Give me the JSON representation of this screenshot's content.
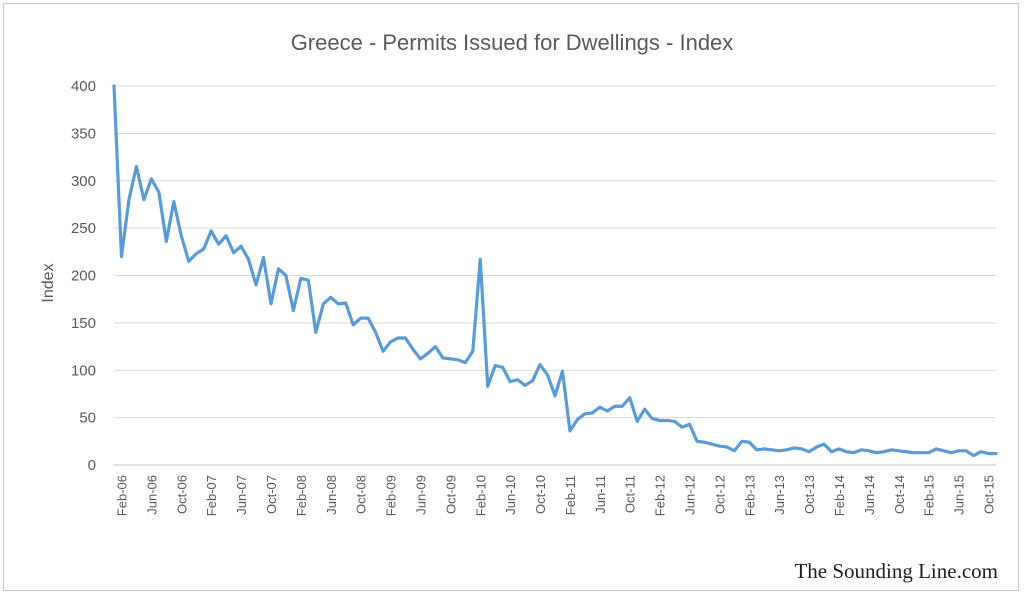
{
  "chart_data": {
    "type": "line",
    "title": "Greece - Permits Issued for Dwellings - Index",
    "xlabel": "",
    "ylabel": "Index",
    "ylim": [
      0,
      400
    ],
    "yticks": [
      0,
      50,
      100,
      150,
      200,
      250,
      300,
      350,
      400
    ],
    "grid": true,
    "x_tick_labels": [
      "Feb-06",
      "Jun-06",
      "Oct-06",
      "Feb-07",
      "Jun-07",
      "Oct-07",
      "Feb-08",
      "Jun-08",
      "Oct-08",
      "Feb-09",
      "Jun-09",
      "Oct-09",
      "Feb-10",
      "Jun-10",
      "Oct-10",
      "Feb-11",
      "Jun-11",
      "Oct-11",
      "Feb-12",
      "Jun-12",
      "Oct-12",
      "Feb-13",
      "Jun-13",
      "Oct-13",
      "Feb-14",
      "Jun-14",
      "Oct-14",
      "Feb-15",
      "Jun-15",
      "Oct-15"
    ],
    "line_color": "#5b9bd5",
    "series": [
      {
        "x": [
          "Jan-06",
          "Feb-06",
          "Mar-06",
          "Apr-06",
          "May-06",
          "Jun-06",
          "Jul-06",
          "Aug-06",
          "Sep-06",
          "Oct-06",
          "Nov-06",
          "Dec-06",
          "Jan-07",
          "Feb-07",
          "Mar-07",
          "Apr-07",
          "May-07",
          "Jun-07",
          "Jul-07",
          "Aug-07",
          "Sep-07",
          "Oct-07",
          "Nov-07",
          "Dec-07",
          "Jan-08",
          "Feb-08",
          "Mar-08",
          "Apr-08",
          "May-08",
          "Jun-08",
          "Jul-08",
          "Aug-08",
          "Sep-08",
          "Oct-08",
          "Nov-08",
          "Dec-08",
          "Jan-09",
          "Feb-09",
          "Mar-09",
          "Apr-09",
          "May-09",
          "Jun-09",
          "Jul-09",
          "Aug-09",
          "Sep-09",
          "Oct-09",
          "Nov-09",
          "Dec-09",
          "Jan-10",
          "Feb-10",
          "Mar-10",
          "Apr-10",
          "May-10",
          "Jun-10",
          "Jul-10",
          "Aug-10",
          "Sep-10",
          "Oct-10",
          "Nov-10",
          "Dec-10",
          "Jan-11",
          "Feb-11",
          "Mar-11",
          "Apr-11",
          "May-11",
          "Jun-11",
          "Jul-11",
          "Aug-11",
          "Sep-11",
          "Oct-11",
          "Nov-11",
          "Dec-11",
          "Jan-12",
          "Feb-12",
          "Mar-12",
          "Apr-12",
          "May-12",
          "Jun-12",
          "Jul-12",
          "Aug-12",
          "Sep-12",
          "Oct-12",
          "Nov-12",
          "Dec-12",
          "Jan-13",
          "Feb-13",
          "Mar-13",
          "Apr-13",
          "May-13",
          "Jun-13",
          "Jul-13",
          "Aug-13",
          "Sep-13",
          "Oct-13",
          "Nov-13",
          "Dec-13",
          "Jan-14",
          "Feb-14",
          "Mar-14",
          "Apr-14",
          "May-14",
          "Jun-14",
          "Jul-14",
          "Aug-14",
          "Sep-14",
          "Oct-14",
          "Nov-14",
          "Dec-14",
          "Jan-15",
          "Feb-15",
          "Mar-15",
          "Apr-15",
          "May-15",
          "Jun-15",
          "Jul-15",
          "Aug-15",
          "Sep-15",
          "Oct-15",
          "Nov-15"
        ],
        "values": [
          400,
          220,
          280,
          315,
          280,
          302,
          288,
          236,
          278,
          242,
          215,
          223,
          228,
          247,
          233,
          242,
          224,
          231,
          217,
          190,
          219,
          170,
          207,
          200,
          163,
          197,
          195,
          140,
          170,
          177,
          170,
          171,
          148,
          155,
          155,
          140,
          120,
          130,
          134,
          134,
          122,
          112,
          118,
          125,
          113,
          112,
          111,
          108,
          120,
          217,
          83,
          105,
          103,
          88,
          90,
          84,
          89,
          106,
          95,
          73,
          99,
          36,
          48,
          54,
          55,
          61,
          57,
          62,
          62,
          71,
          46,
          59,
          49,
          47,
          47,
          46,
          40,
          43,
          25,
          24,
          22,
          20,
          19,
          15,
          25,
          24,
          16,
          17,
          16,
          15,
          16,
          18,
          17,
          14,
          19,
          22,
          14,
          17,
          14,
          13,
          16,
          15,
          13,
          14,
          16,
          15,
          14,
          13,
          13,
          13,
          17,
          15,
          13,
          15,
          15,
          10,
          14,
          12,
          12
        ]
      }
    ]
  },
  "footer": {
    "brand": "The Sounding Line.com"
  }
}
